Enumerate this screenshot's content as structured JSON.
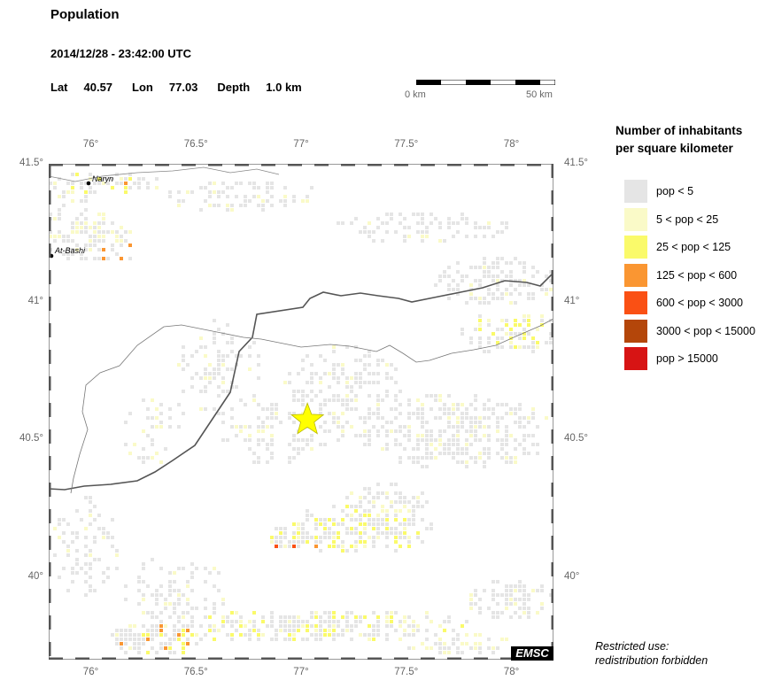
{
  "header": {
    "title": "Population",
    "datetime": "2014/12/28 - 23:42:00 UTC",
    "lat_label": "Lat",
    "lat_value": "40.57",
    "lon_label": "Lon",
    "lon_value": "77.03",
    "depth_label": "Depth",
    "depth_value": "1.0 km"
  },
  "scale": {
    "left_label": "0 km",
    "right_label": "50 km"
  },
  "legend": {
    "title_line1": "Number of inhabitants",
    "title_line2": "per square kilometer",
    "items": [
      {
        "label": "pop < 5",
        "color": "#e5e5e5"
      },
      {
        "label": "5 < pop < 25",
        "color": "#fafac8"
      },
      {
        "label": "25 < pop < 125",
        "color": "#fafa6a"
      },
      {
        "label": "125 < pop < 600",
        "color": "#fa9632"
      },
      {
        "label": "600 < pop < 3000",
        "color": "#fa5014"
      },
      {
        "label": "3000 < pop < 15000",
        "color": "#b4460a"
      },
      {
        "label": "pop > 15000",
        "color": "#d71414"
      }
    ]
  },
  "map": {
    "lon_ticks": [
      "76°",
      "76.5°",
      "77°",
      "77.5°",
      "78°"
    ],
    "lat_ticks": [
      "41.5°",
      "41°",
      "40.5°",
      "40°"
    ],
    "cities": [
      "Naryn",
      "At-Bashi"
    ],
    "epicenter": {
      "lat": 40.57,
      "lon": 77.03,
      "marker": "star-icon",
      "color": "#ffff00"
    },
    "extent": {
      "lon_min": 75.8,
      "lon_max": 78.2,
      "lat_min": 39.7,
      "lat_max": 41.5
    }
  },
  "footer": {
    "restricted_line1": "Restricted use:",
    "restricted_line2": "redistribution forbidden",
    "logo_text": "EMSC"
  }
}
